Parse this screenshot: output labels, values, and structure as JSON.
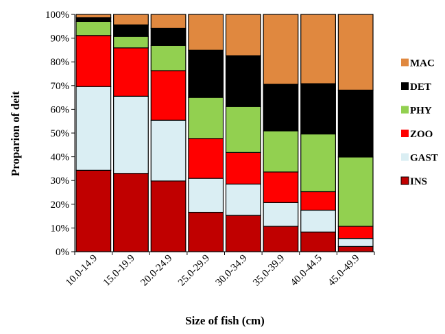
{
  "chart_data": {
    "type": "bar",
    "stacked": true,
    "title": "",
    "xlabel": "Size of fish (cm)",
    "ylabel": "Proparion of deit",
    "ylim": [
      0,
      100
    ],
    "y_unit": "%",
    "y_ticks": [
      0,
      10,
      20,
      30,
      40,
      50,
      60,
      70,
      80,
      90,
      100
    ],
    "y_tick_labels": [
      "0%",
      "10%",
      "20%",
      "30%",
      "40%",
      "50%",
      "60%",
      "70%",
      "80%",
      "90%",
      "100%"
    ],
    "grid": false,
    "legend_position": "right",
    "categories": [
      "10.0-14.9",
      "15.0-19.9",
      "20.0-24.9",
      "25.0-29.9",
      "30.0-34.9",
      "35.0-39.9",
      "40.0-44.5",
      "45.0-49.9"
    ],
    "series": [
      {
        "name": "INS",
        "color": "#c00000",
        "values": [
          34.3,
          33.0,
          29.8,
          16.6,
          15.3,
          10.7,
          8.3,
          2.2
        ]
      },
      {
        "name": "GAST",
        "color": "#daeef3",
        "values": [
          35.3,
          32.5,
          25.6,
          14.3,
          13.2,
          10.0,
          9.2,
          3.4
        ]
      },
      {
        "name": "ZOO",
        "color": "#ff0000",
        "values": [
          21.5,
          20.4,
          20.9,
          16.8,
          13.3,
          12.9,
          7.8,
          5.1
        ]
      },
      {
        "name": "PHY",
        "color": "#92d050",
        "values": [
          5.9,
          4.8,
          10.6,
          17.3,
          19.4,
          17.3,
          24.3,
          29.2
        ]
      },
      {
        "name": "DET",
        "color": "#000000",
        "values": [
          1.6,
          4.9,
          7.2,
          19.9,
          21.4,
          19.7,
          21.2,
          28.2
        ]
      },
      {
        "name": "MAC",
        "color": "#e0883f",
        "values": [
          1.4,
          4.4,
          5.9,
          15.1,
          17.4,
          29.4,
          29.2,
          31.9
        ]
      }
    ],
    "legend_order": [
      "MAC",
      "DET",
      "PHY",
      "ZOO",
      "GAST",
      "INS"
    ]
  }
}
